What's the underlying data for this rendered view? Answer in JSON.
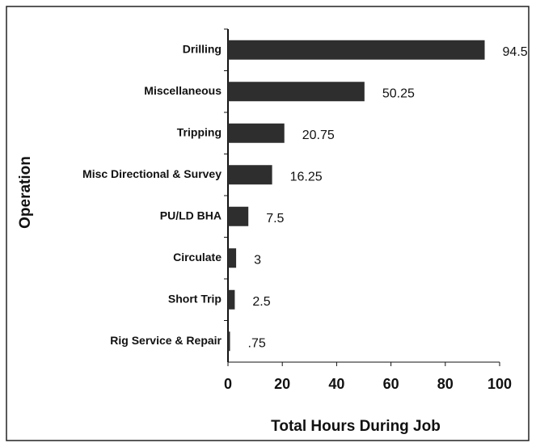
{
  "chart_data": {
    "type": "hbar",
    "categories": [
      "Drilling",
      "Miscellaneous",
      "Tripping",
      "Misc Directional & Survey",
      "PU/LD BHA",
      "Circulate",
      "Short Trip",
      "Rig Service & Repair"
    ],
    "values": [
      94.5,
      50.25,
      20.75,
      16.25,
      7.5,
      3,
      2.5,
      0.75
    ],
    "value_labels": [
      "94.5",
      "50.25",
      "20.75",
      "16.25",
      "7.5",
      "3",
      "2.5",
      ".75"
    ],
    "color": "#2e2e2e",
    "xlabel": "Total Hours During Job",
    "ylabel": "Operation",
    "xlim": [
      0,
      100
    ],
    "xticks": [
      0,
      20,
      40,
      60,
      80,
      100
    ]
  }
}
